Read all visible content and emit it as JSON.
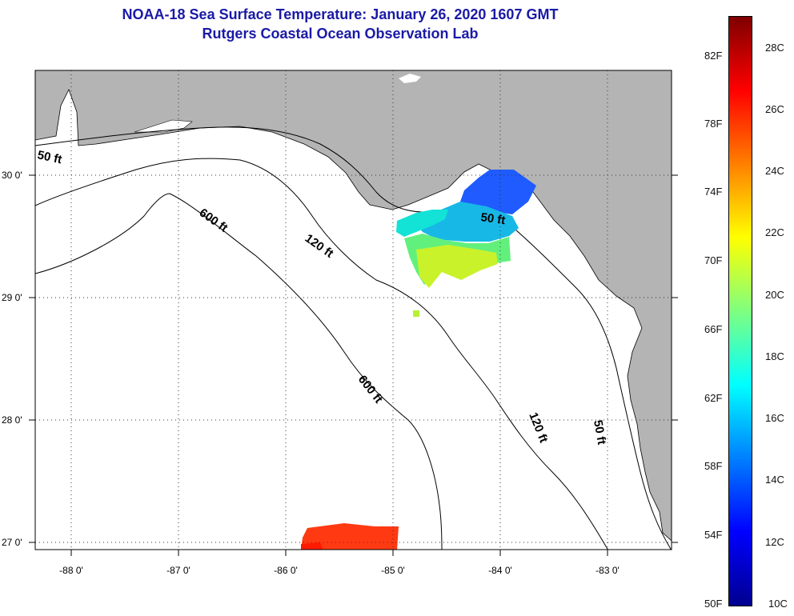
{
  "title": {
    "line1": "NOAA-18 Sea Surface Temperature:  January 26, 2020 1607 GMT",
    "line2": "Rutgers Coastal Ocean Observation Lab"
  },
  "map": {
    "lon_labels": [
      "-88 0'",
      "-87 0'",
      "-86 0'",
      "-85 0'",
      "-84 0'",
      "-83 0'"
    ],
    "lat_labels": [
      "30 0'",
      "29 0'",
      "28 0'",
      "27 0'"
    ],
    "contour_labels": [
      "50 ft",
      "600 ft",
      "120 ft",
      "50 ft",
      "600 ft",
      "120 ft",
      "50 ft"
    ],
    "colors": {
      "land": "#b4b4b4",
      "ocean": "#ffffff",
      "contour": "#000000"
    }
  },
  "colorbar": {
    "fahrenheit": [
      "82F",
      "78F",
      "74F",
      "70F",
      "66F",
      "62F",
      "58F",
      "54F",
      "50F"
    ],
    "celsius": [
      "28C",
      "26C",
      "24C",
      "22C",
      "20C",
      "18C",
      "16C",
      "14C",
      "12C",
      "10C"
    ],
    "gradient": [
      "#00008f",
      "#0000ff",
      "#007fff",
      "#00ffff",
      "#7fff7f",
      "#ffff00",
      "#ff7f00",
      "#ff0000",
      "#7f0000"
    ]
  }
}
